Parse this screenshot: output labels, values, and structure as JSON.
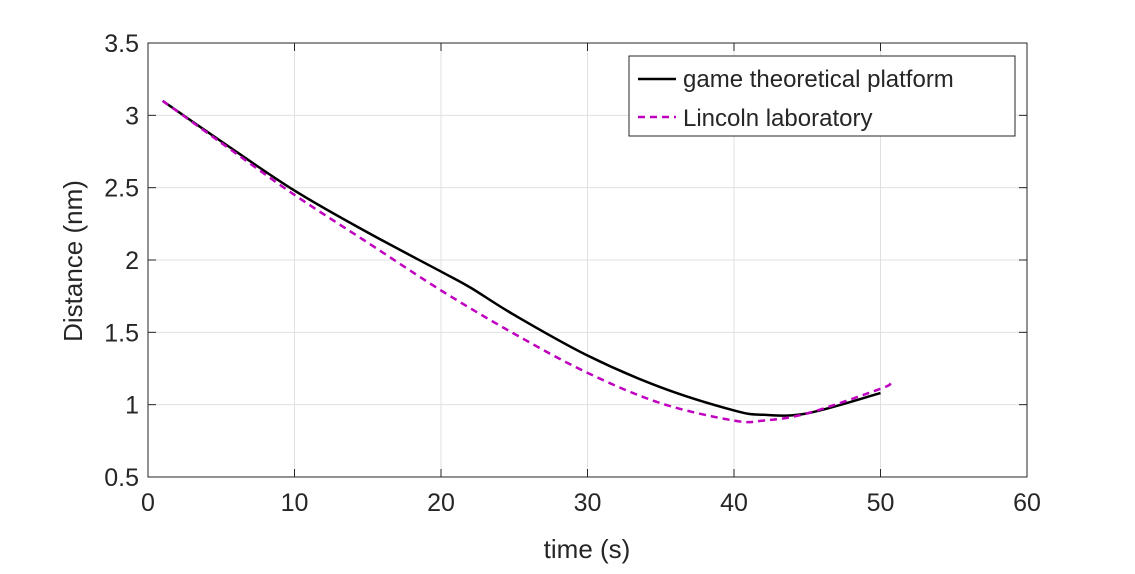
{
  "chart_data": {
    "type": "line",
    "title": "",
    "xlabel": "time (s)",
    "ylabel": "Distance (nm)",
    "xlim": [
      0,
      60
    ],
    "ylim": [
      0.5,
      3.5
    ],
    "xticks": [
      "0",
      "10",
      "20",
      "30",
      "40",
      "50",
      "60"
    ],
    "yticks": [
      "0.5",
      "1",
      "1.5",
      "2",
      "2.5",
      "3",
      "3.5"
    ],
    "grid": true,
    "legend_position": "top-right",
    "series": [
      {
        "name": "game theoretical platform",
        "color": "#000000",
        "style": "solid",
        "x": [
          1,
          5,
          10,
          15,
          20,
          22,
          25,
          30,
          35,
          40,
          42,
          45,
          50
        ],
        "y": [
          3.1,
          2.82,
          2.48,
          2.19,
          1.92,
          1.81,
          1.62,
          1.34,
          1.12,
          0.96,
          0.93,
          0.94,
          1.08
        ]
      },
      {
        "name": "Lincoln laboratory",
        "color": "#bf00bf",
        "style": "dashed",
        "x": [
          1,
          5,
          10,
          15,
          20,
          25,
          30,
          35,
          40,
          42,
          45,
          50,
          50.7
        ],
        "y": [
          3.1,
          2.81,
          2.45,
          2.12,
          1.79,
          1.49,
          1.22,
          1.01,
          0.89,
          0.89,
          0.94,
          1.11,
          1.15
        ]
      }
    ]
  }
}
